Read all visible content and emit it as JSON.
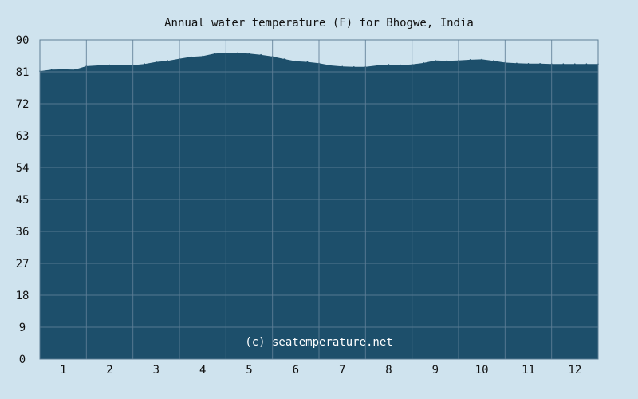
{
  "chart_data": {
    "type": "area",
    "title": "Annual water temperature (F) for Bhogwe, India",
    "xlabel": "",
    "ylabel": "",
    "ylim": [
      0,
      90
    ],
    "yticks": [
      "0",
      "9",
      "18",
      "27",
      "36",
      "45",
      "54",
      "63",
      "72",
      "81",
      "90"
    ],
    "categories": [
      "1",
      "2",
      "3",
      "4",
      "5",
      "6",
      "7",
      "8",
      "9",
      "10",
      "11",
      "12"
    ],
    "x": [
      0.0,
      0.25,
      0.5,
      0.75,
      1.0,
      1.25,
      1.5,
      1.75,
      2.0,
      2.25,
      2.5,
      2.75,
      3.0,
      3.25,
      3.5,
      3.75,
      4.0,
      4.25,
      4.5,
      4.75,
      5.0,
      5.25,
      5.5,
      5.75,
      6.0,
      6.25,
      6.5,
      6.75,
      7.0,
      7.25,
      7.5,
      7.75,
      8.0,
      8.25,
      8.5,
      8.75,
      9.0,
      9.25,
      9.5,
      9.75,
      10.0,
      10.25,
      10.5,
      10.75,
      11.0,
      11.25,
      11.5,
      11.75,
      12.0
    ],
    "values": [
      81.2,
      81.6,
      81.7,
      81.6,
      82.6,
      82.8,
      82.9,
      82.8,
      82.9,
      83.2,
      83.8,
      84.1,
      84.7,
      85.2,
      85.4,
      86.1,
      86.3,
      86.3,
      86.1,
      85.8,
      85.3,
      84.6,
      84.0,
      83.8,
      83.4,
      82.8,
      82.5,
      82.4,
      82.4,
      82.8,
      83.0,
      82.9,
      83.1,
      83.5,
      84.2,
      84.1,
      84.2,
      84.4,
      84.5,
      84.1,
      83.6,
      83.4,
      83.3,
      83.3,
      83.2,
      83.2,
      83.2,
      83.2,
      83.2
    ],
    "grid": true,
    "legend": "none",
    "colors": {
      "background": "#cfe3ee",
      "fill": "#1d4f6b",
      "grid": "#5f7f96"
    },
    "watermark": "(c) seatemperature.net"
  }
}
